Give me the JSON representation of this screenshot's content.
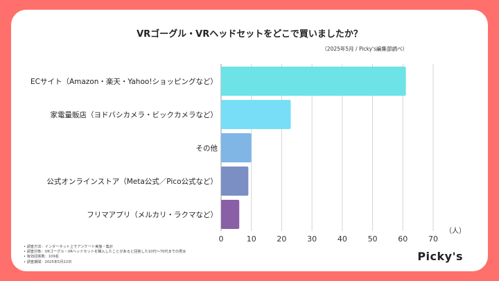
{
  "chart_data": {
    "type": "bar",
    "orientation": "horizontal",
    "title": "VRゴーグル・VRヘッドセットをどこで買いましたか？",
    "subtitle": "（2025年5月 / Picky's編集部調べ）",
    "categories": [
      "ECサイト（Amazon・楽天・Yahoo!ショッピングなど）",
      "家電量販店（ヨドバシカメラ・ビックカメラなど）",
      "その他",
      "公式オンラインストア（Meta公式／Pico公式など）",
      "フリマアプリ（メルカリ・ラクマなど）"
    ],
    "values": [
      61,
      23,
      10,
      9,
      6
    ],
    "colors": [
      "#6de3e8",
      "#78def7",
      "#7fb6e6",
      "#7b8fc4",
      "#8a5fa6"
    ],
    "xlim": [
      0,
      70
    ],
    "xticks": [
      0,
      10,
      20,
      30,
      40,
      50,
      60,
      70
    ],
    "xlabel": "（人）",
    "grid": true
  },
  "notes": [
    "調査方法：インターネット上でアンケート実施・集計",
    "調査対象：VRゴーグル・VRヘッドセットを購入したことがあると回答した10代〜70代までの男女",
    "有効回答数：109名",
    "調査期間：2025年5月22日"
  ],
  "brand": "Picky's"
}
